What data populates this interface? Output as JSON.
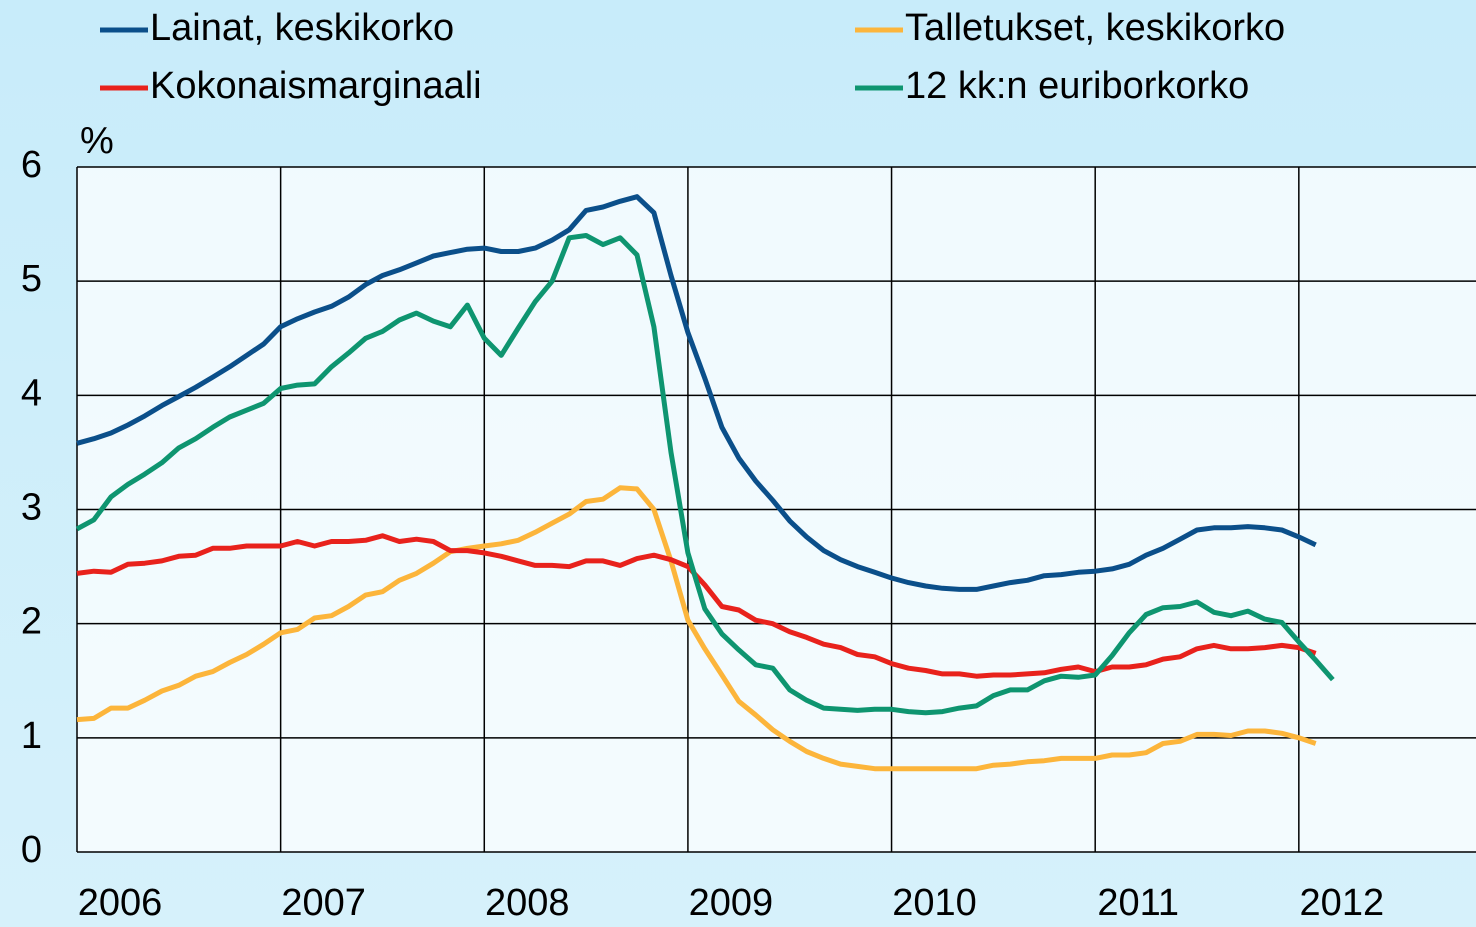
{
  "chart_data": {
    "type": "line",
    "ylabel": "%",
    "x": [
      2006,
      2006.083,
      2006.167,
      2006.25,
      2006.333,
      2006.417,
      2006.5,
      2006.583,
      2006.667,
      2006.75,
      2006.833,
      2006.917,
      2007,
      2007.083,
      2007.167,
      2007.25,
      2007.333,
      2007.417,
      2007.5,
      2007.583,
      2007.667,
      2007.75,
      2007.833,
      2007.917,
      2008,
      2008.083,
      2008.167,
      2008.25,
      2008.333,
      2008.417,
      2008.5,
      2008.583,
      2008.667,
      2008.75,
      2008.833,
      2008.917,
      2009,
      2009.083,
      2009.167,
      2009.25,
      2009.333,
      2009.417,
      2009.5,
      2009.583,
      2009.667,
      2009.75,
      2009.833,
      2009.917,
      2010,
      2010.083,
      2010.167,
      2010.25,
      2010.333,
      2010.417,
      2010.5,
      2010.583,
      2010.667,
      2010.75,
      2010.833,
      2010.917,
      2011,
      2011.083,
      2011.167,
      2011.25,
      2011.333,
      2011.417,
      2011.5,
      2011.583,
      2011.667,
      2011.75,
      2011.833,
      2011.917,
      2012,
      2012.083,
      2012.167
    ],
    "series": [
      {
        "name": "Lainat, keskikorko",
        "color": "#0b4f8a",
        "values": [
          3.58,
          3.62,
          3.67,
          3.74,
          3.82,
          3.91,
          3.99,
          4.07,
          4.16,
          4.25,
          4.35,
          4.45,
          4.6,
          4.67,
          4.73,
          4.78,
          4.86,
          4.97,
          5.05,
          5.1,
          5.16,
          5.22,
          5.25,
          5.28,
          5.29,
          5.26,
          5.26,
          5.29,
          5.36,
          5.45,
          5.62,
          5.65,
          5.7,
          5.74,
          5.6,
          5.05,
          4.55,
          4.15,
          3.72,
          3.45,
          3.25,
          3.08,
          2.9,
          2.76,
          2.64,
          2.56,
          2.5,
          2.45,
          2.4,
          2.36,
          2.33,
          2.31,
          2.3,
          2.3,
          2.33,
          2.36,
          2.38,
          2.42,
          2.43,
          2.45,
          2.46,
          2.48,
          2.52,
          2.6,
          2.66,
          2.74,
          2.82,
          2.84,
          2.84,
          2.85,
          2.84,
          2.82,
          2.76,
          2.69,
          null
        ]
      },
      {
        "name": "Talletukset, keskikorko",
        "color": "#fcb53b",
        "values": [
          1.16,
          1.17,
          1.26,
          1.26,
          1.33,
          1.41,
          1.46,
          1.54,
          1.58,
          1.66,
          1.73,
          1.82,
          1.92,
          1.95,
          2.05,
          2.07,
          2.15,
          2.25,
          2.28,
          2.38,
          2.44,
          2.53,
          2.63,
          2.66,
          2.68,
          2.7,
          2.73,
          2.8,
          2.88,
          2.96,
          3.07,
          3.09,
          3.19,
          3.18,
          3.0,
          2.55,
          2.03,
          1.78,
          1.55,
          1.32,
          1.2,
          1.07,
          0.97,
          0.88,
          0.82,
          0.77,
          0.75,
          0.73,
          0.73,
          0.73,
          0.73,
          0.73,
          0.73,
          0.73,
          0.76,
          0.77,
          0.79,
          0.8,
          0.82,
          0.82,
          0.82,
          0.85,
          0.85,
          0.87,
          0.95,
          0.97,
          1.03,
          1.03,
          1.02,
          1.06,
          1.06,
          1.04,
          1.0,
          0.95,
          null
        ]
      },
      {
        "name": "Kokonaismarginaali",
        "color": "#e8221c",
        "values": [
          2.44,
          2.46,
          2.45,
          2.52,
          2.53,
          2.55,
          2.59,
          2.6,
          2.66,
          2.66,
          2.68,
          2.68,
          2.68,
          2.72,
          2.68,
          2.72,
          2.72,
          2.73,
          2.77,
          2.72,
          2.74,
          2.72,
          2.64,
          2.64,
          2.62,
          2.59,
          2.55,
          2.51,
          2.51,
          2.5,
          2.55,
          2.55,
          2.51,
          2.57,
          2.6,
          2.56,
          2.5,
          2.34,
          2.15,
          2.12,
          2.03,
          2.0,
          1.93,
          1.88,
          1.82,
          1.79,
          1.73,
          1.71,
          1.65,
          1.61,
          1.59,
          1.56,
          1.56,
          1.54,
          1.55,
          1.55,
          1.56,
          1.57,
          1.6,
          1.62,
          1.58,
          1.62,
          1.62,
          1.64,
          1.69,
          1.71,
          1.78,
          1.81,
          1.78,
          1.78,
          1.79,
          1.81,
          1.79,
          1.74,
          null
        ]
      },
      {
        "name": "12 kk:n euriborkorko",
        "color": "#0e9570",
        "values": [
          2.83,
          2.91,
          3.11,
          3.22,
          3.31,
          3.41,
          3.54,
          3.62,
          3.72,
          3.81,
          3.87,
          3.93,
          4.06,
          4.09,
          4.1,
          4.25,
          4.37,
          4.5,
          4.56,
          4.66,
          4.72,
          4.65,
          4.6,
          4.79,
          4.5,
          4.35,
          4.59,
          4.82,
          5.0,
          5.38,
          5.4,
          5.32,
          5.38,
          5.23,
          4.6,
          3.5,
          2.62,
          2.13,
          1.91,
          1.77,
          1.64,
          1.61,
          1.42,
          1.33,
          1.26,
          1.25,
          1.24,
          1.25,
          1.25,
          1.23,
          1.22,
          1.23,
          1.26,
          1.28,
          1.37,
          1.42,
          1.42,
          1.5,
          1.54,
          1.53,
          1.55,
          1.72,
          1.92,
          2.08,
          2.14,
          2.15,
          2.19,
          2.1,
          2.07,
          2.11,
          2.04,
          2.01,
          1.84,
          1.68,
          1.51
        ]
      }
    ],
    "xlim": [
      2006,
      2012.87
    ],
    "xticks": [
      2006,
      2007,
      2008,
      2009,
      2010,
      2011,
      2012
    ],
    "ylim": [
      0,
      6
    ],
    "yticks": [
      0,
      1,
      2,
      3,
      4,
      5,
      6
    ],
    "grid": true,
    "legend": "top"
  }
}
